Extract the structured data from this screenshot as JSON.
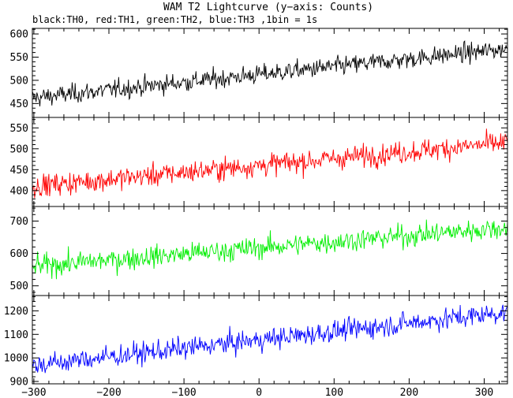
{
  "title": "WAM T2 Lightcurve (y−axis: Counts)",
  "subtitle": "black:TH0, red:TH1, green:TH2, blue:TH3 ,1bin = 1s",
  "chart_data": {
    "type": "line",
    "title": "WAM T2 Lightcurve (y−axis: Counts)",
    "subtitle": "black:TH0, red:TH1, green:TH2, blue:TH3 ,1bin = 1s",
    "xlim": [
      -302,
      331
    ],
    "x_ticks": [
      -300,
      -200,
      -100,
      0,
      100,
      200,
      300
    ],
    "x_tick_labels": [
      "−300",
      "−200",
      "−100",
      "0",
      "100",
      "200",
      "300"
    ],
    "grid": false,
    "panels": [
      {
        "channel": "TH0",
        "color": "#000000",
        "ylim": [
          420,
          612
        ],
        "y_ticks": [
          450,
          500,
          550,
          600
        ],
        "trend_start": 462,
        "trend_end": 568,
        "scatter": 17,
        "series": {
          "x": [
            -300,
            -200,
            -100,
            0,
            100,
            200,
            300,
            328
          ],
          "values": [
            462,
            472,
            488,
            505,
            520,
            538,
            556,
            568
          ]
        }
      },
      {
        "channel": "TH1",
        "color": "#ff0000",
        "ylim": [
          362,
          575
        ],
        "y_ticks": [
          400,
          450,
          500,
          550
        ],
        "trend_start": 410,
        "trend_end": 515,
        "scatter": 22,
        "series": {
          "x": [
            -300,
            -200,
            -100,
            0,
            100,
            200,
            300,
            328
          ],
          "values": [
            410,
            422,
            437,
            453,
            468,
            484,
            502,
            515
          ]
        }
      },
      {
        "channel": "TH2",
        "color": "#00ee00",
        "ylim": [
          470,
          745
        ],
        "y_ticks": [
          500,
          600,
          700
        ],
        "trend_start": 560,
        "trend_end": 680,
        "scatter": 28,
        "series": {
          "x": [
            -300,
            -200,
            -100,
            0,
            100,
            200,
            300,
            328
          ],
          "values": [
            560,
            575,
            592,
            613,
            630,
            648,
            668,
            680
          ]
        }
      },
      {
        "channel": "TH3",
        "color": "#0000ff",
        "ylim": [
          890,
          1265
        ],
        "y_ticks": [
          900,
          1000,
          1100,
          1200
        ],
        "trend_start": 968,
        "trend_end": 1195,
        "scatter": 38,
        "series": {
          "x": [
            -300,
            -200,
            -100,
            0,
            100,
            200,
            300,
            328
          ],
          "values": [
            968,
            990,
            1020,
            1058,
            1095,
            1132,
            1172,
            1195
          ]
        }
      }
    ]
  }
}
